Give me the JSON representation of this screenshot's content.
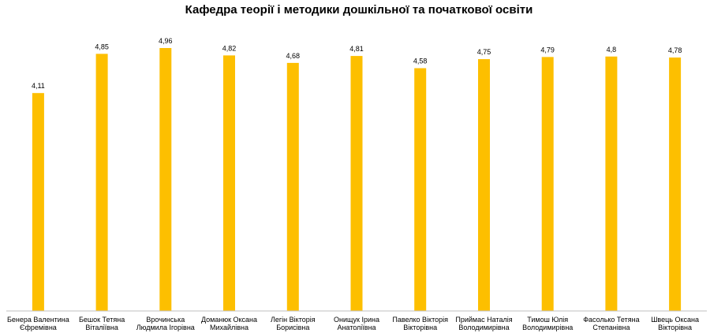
{
  "chart_data": {
    "type": "bar",
    "title": "Кафедра теорії  і  методики дошкільної та початкової освіти",
    "xlabel": "",
    "ylabel": "",
    "ylim": [
      0,
      5.45
    ],
    "grid": false,
    "legend": "none",
    "bar_color": "#FDBF00",
    "axis_color": "#BFBFBF",
    "categories": [
      [
        "Бенера  Валентина",
        "Єфремівна"
      ],
      [
        "Бешок  Тетяна",
        "Віталіївна"
      ],
      [
        "Врочинська",
        "Людмила  Ігорівна"
      ],
      [
        "Доманюк Оксана",
        "Михайлівна"
      ],
      [
        "Легін Вікторія",
        "Борисівна"
      ],
      [
        "Онищук Ірина",
        "Анатоліївна"
      ],
      [
        "Павелко Вікторія",
        "Вікторівна"
      ],
      [
        "Приймас Наталія",
        "Володимирівна"
      ],
      [
        "Тимош  Юлія",
        "Володимирівна"
      ],
      [
        "Фасолько Тетяна",
        "Степанівна"
      ],
      [
        "Швець Оксана",
        "Вікторівна"
      ]
    ],
    "values": [
      4.11,
      4.85,
      4.96,
      4.82,
      4.68,
      4.81,
      4.58,
      4.75,
      4.79,
      4.8,
      4.78
    ],
    "value_labels": [
      "4,11",
      "4,85",
      "4,96",
      "4,82",
      "4,68",
      "4,81",
      "4,58",
      "4,75",
      "4,79",
      "4,8",
      "4,78"
    ]
  }
}
